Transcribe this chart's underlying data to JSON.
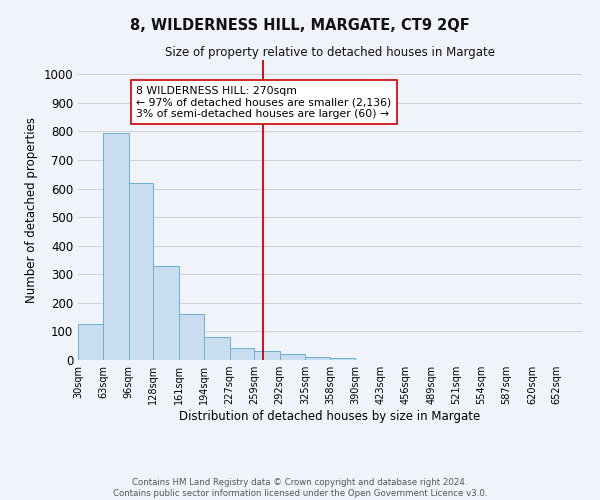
{
  "title": "8, WILDERNESS HILL, MARGATE, CT9 2QF",
  "subtitle": "Size of property relative to detached houses in Margate",
  "bar_heights": [
    125,
    795,
    620,
    330,
    160,
    82,
    42,
    30,
    20,
    10,
    7,
    0,
    0,
    0,
    0,
    0,
    0,
    0,
    0,
    0
  ],
  "bin_edges": [
    30,
    63,
    96,
    128,
    161,
    194,
    227,
    259,
    292,
    325,
    358,
    390,
    423,
    456,
    489,
    521,
    554,
    587,
    620,
    652,
    685
  ],
  "bar_color": "#c9ddf0",
  "bar_edge_color": "#6baed6",
  "vline_x": 270,
  "vline_color": "#cc0000",
  "xlabel": "Distribution of detached houses by size in Margate",
  "ylabel": "Number of detached properties",
  "ylim": [
    0,
    1050
  ],
  "yticks": [
    0,
    100,
    200,
    300,
    400,
    500,
    600,
    700,
    800,
    900,
    1000
  ],
  "annotation_title": "8 WILDERNESS HILL: 270sqm",
  "annotation_line1": "← 97% of detached houses are smaller (2,136)",
  "annotation_line2": "3% of semi-detached houses are larger (60) →",
  "footer_line1": "Contains HM Land Registry data © Crown copyright and database right 2024.",
  "footer_line2": "Contains public sector information licensed under the Open Government Licence v3.0.",
  "grid_color": "#cccccc",
  "background_color": "#f0f4fa"
}
